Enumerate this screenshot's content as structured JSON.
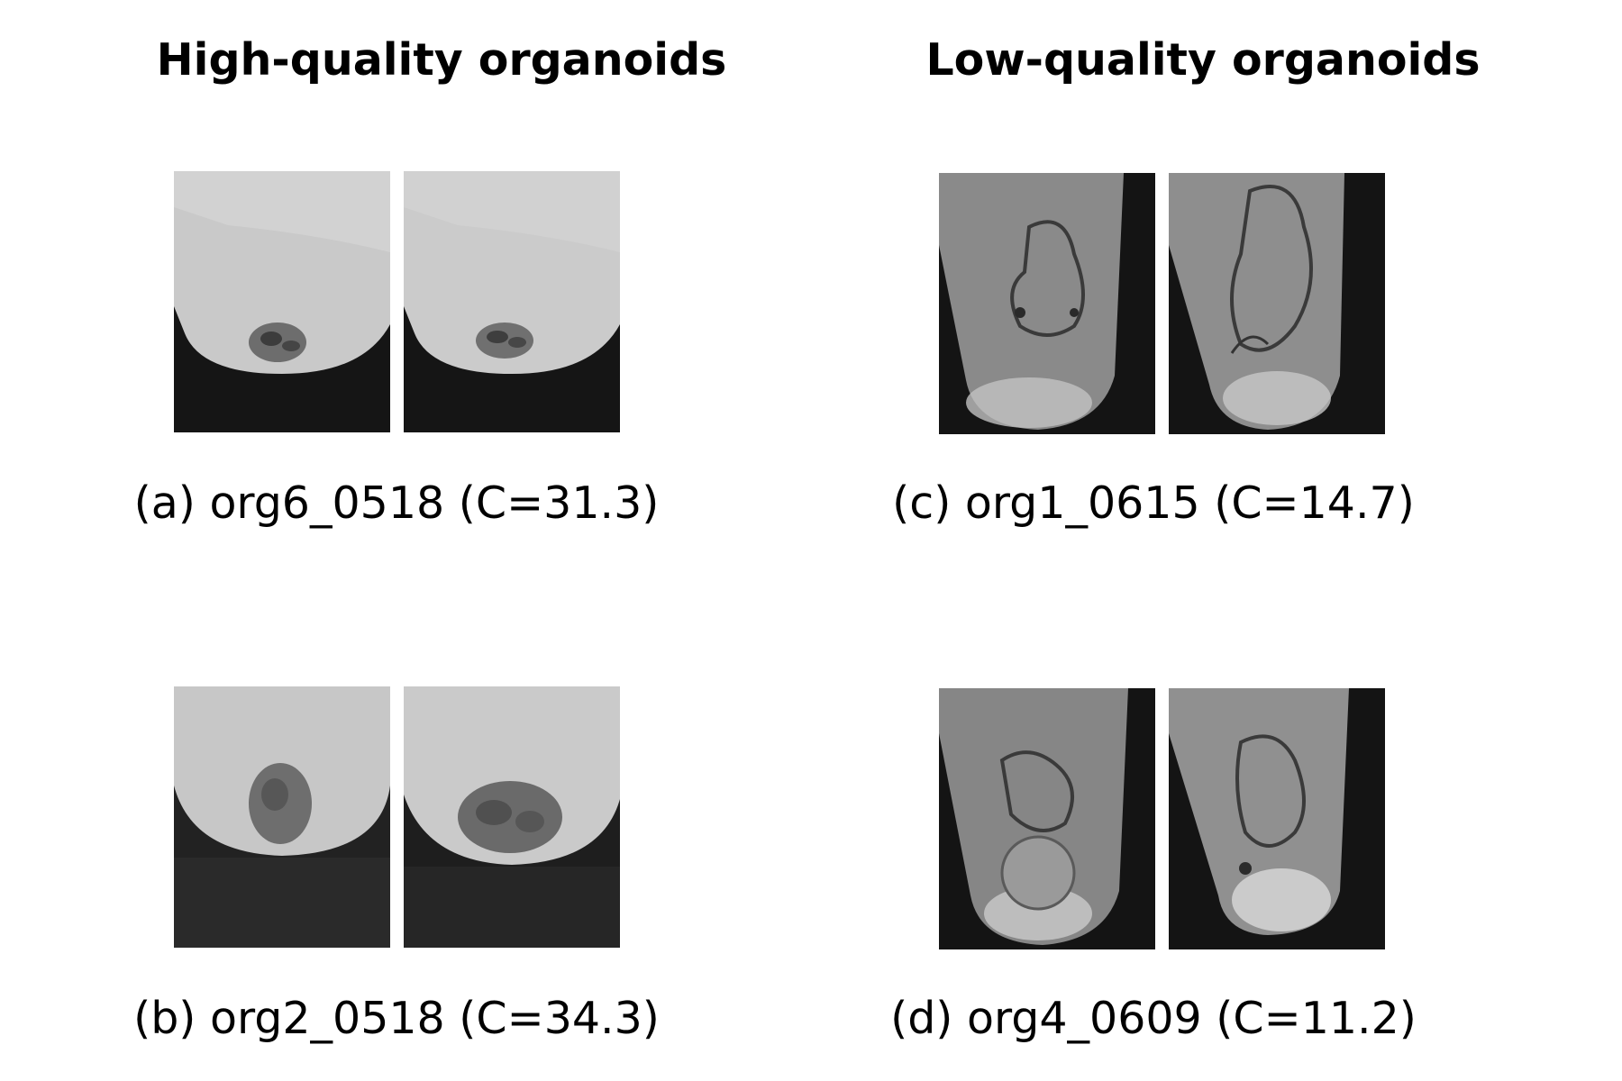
{
  "titles": {
    "left": "High-quality organoids",
    "right": "Low-quality organoids"
  },
  "panels": {
    "a": {
      "caption": "(a) org6_0518 (C=31.3)",
      "quality": "high",
      "C": 31.3
    },
    "b": {
      "caption": "(b) org2_0518 (C=34.3)",
      "quality": "high",
      "C": 34.3
    },
    "c": {
      "caption": "(c) org1_0615 (C=14.7)",
      "quality": "low",
      "C": 14.7
    },
    "d": {
      "caption": "(d) org4_0609 (C=11.2)",
      "quality": "low",
      "C": 11.2
    }
  }
}
